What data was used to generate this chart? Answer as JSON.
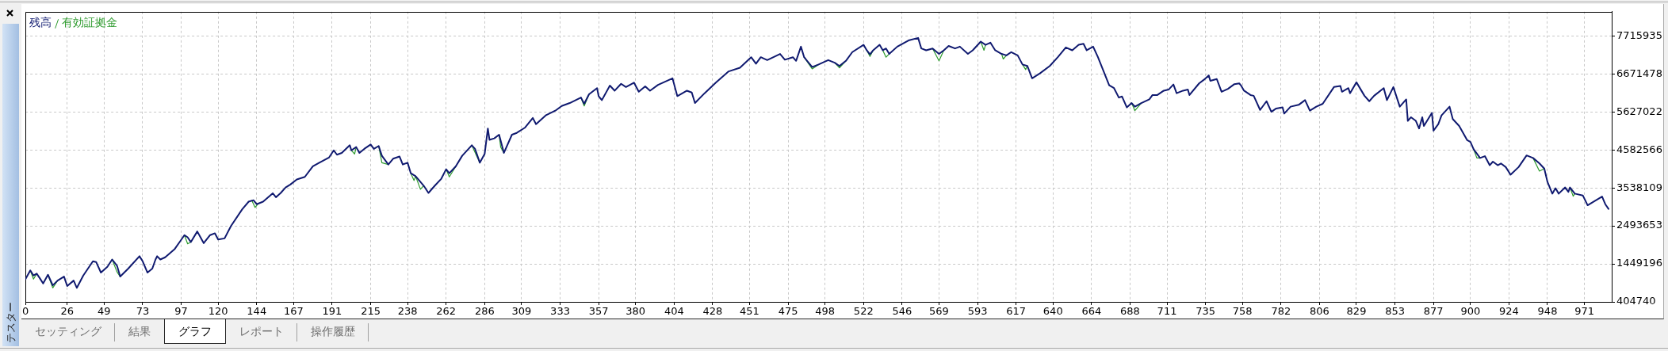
{
  "chart_data": {
    "type": "line",
    "legend": "top left",
    "grid": true,
    "xlim": [
      0,
      988
    ],
    "xticks": [
      0,
      26,
      49,
      73,
      97,
      120,
      144,
      167,
      191,
      215,
      238,
      262,
      286,
      309,
      333,
      357,
      380,
      404,
      428,
      451,
      475,
      498,
      522,
      546,
      569,
      593,
      617,
      640,
      664,
      688,
      711,
      735,
      758,
      782,
      806,
      829,
      853,
      877,
      900,
      924,
      948,
      971
    ],
    "ylim": [
      404740,
      8380000
    ],
    "yticks": [
      404740,
      1449196,
      2493653,
      3538109,
      4582566,
      5627022,
      6671478,
      7715935
    ],
    "annotations": [
      "テスター",
      "セッティング",
      "結果",
      "グラフ",
      "レポート",
      "操作履歴"
    ],
    "series": [
      {
        "name": "残高",
        "color": "#101a70",
        "x": [
          0,
          3,
          5,
          7,
          9,
          11,
          14,
          17,
          20,
          24,
          26,
          30,
          32,
          36,
          42,
          44,
          47,
          51,
          54,
          57,
          59,
          64,
          71,
          73,
          76,
          79,
          81,
          82,
          84,
          87,
          93,
          96,
          99,
          101,
          103,
          107,
          111,
          115,
          118,
          120,
          124,
          128,
          135,
          139,
          142,
          144,
          148,
          154,
          156,
          159,
          162,
          165,
          169,
          174,
          179,
          183,
          189,
          192,
          194,
          197,
          202,
          203,
          206,
          208,
          211,
          215,
          217,
          220,
          222,
          226,
          229,
          233,
          235,
          238,
          240,
          243,
          248,
          251,
          255,
          259,
          262,
          264,
          268,
          272,
          278,
          280,
          283,
          286,
          288,
          289,
          292,
          295,
          298,
          303,
          306,
          311,
          316,
          318,
          324,
          330,
          334,
          339,
          346,
          348,
          351,
          356,
          357,
          359,
          364,
          367,
          371,
          374,
          379,
          382,
          386,
          389,
          394,
          403,
          406,
          412,
          415,
          417,
          423,
          430,
          438,
          445,
          452,
          455,
          458,
          462,
          470,
          473,
          478,
          480,
          483,
          485,
          490,
          494,
          500,
          504,
          507,
          511,
          515,
          522,
          524,
          526,
          528,
          532,
          534,
          536,
          538,
          543,
          550,
          556,
          558,
          561,
          565,
          569,
          572,
          575,
          579,
          582,
          587,
          590,
          595,
          598,
          601,
          604,
          608,
          611,
          614,
          618,
          621,
          624,
          627,
          632,
          638,
          643,
          648,
          652,
          656,
          659,
          661,
          665,
          668,
          675,
          678,
          681,
          683,
          686,
          689,
          691,
          695,
          700,
          702,
          705,
          709,
          712,
          715,
          717,
          721,
          724,
          725,
          731,
          734,
          737,
          738,
          742,
          745,
          749,
          753,
          756,
          757,
          759,
          763,
          765,
          769,
          773,
          776,
          779,
          783,
          784,
          788,
          793,
          797,
          800,
          804,
          808,
          815,
          819,
          820,
          824,
          825,
          829,
          834,
          837,
          840,
          846,
          848,
          852,
          856,
          860,
          861,
          863,
          866,
          868,
          870,
          871,
          876,
          877,
          880,
          882,
          887,
          889,
          893,
          898,
          900,
          902,
          906,
          909,
          912,
          914,
          917,
          919,
          922,
          925,
          930,
          935,
          939,
          943,
          946,
          948,
          951,
          953,
          955,
          959,
          961,
          962,
          965,
          970,
          973,
          982,
          984,
          986
        ],
        "values": [
          1030000,
          1270000,
          1130000,
          1180000,
          1050000,
          910000,
          1150000,
          860000,
          990000,
          1100000,
          840000,
          990000,
          790000,
          1130000,
          1520000,
          1500000,
          1210000,
          1370000,
          1570000,
          1400000,
          1100000,
          1320000,
          1660000,
          1520000,
          1210000,
          1320000,
          1570000,
          1660000,
          1570000,
          1630000,
          1860000,
          2050000,
          2240000,
          2180000,
          2050000,
          2340000,
          2020000,
          2240000,
          2290000,
          2120000,
          2150000,
          2490000,
          2950000,
          3160000,
          3200000,
          3090000,
          3160000,
          3390000,
          3280000,
          3400000,
          3550000,
          3630000,
          3770000,
          3840000,
          4130000,
          4230000,
          4370000,
          4570000,
          4450000,
          4500000,
          4710000,
          4570000,
          4660000,
          4500000,
          4610000,
          4730000,
          4610000,
          4690000,
          4420000,
          4180000,
          4340000,
          4400000,
          4180000,
          4230000,
          3940000,
          3860000,
          3600000,
          3400000,
          3600000,
          3790000,
          4050000,
          3940000,
          4130000,
          4420000,
          4710000,
          4610000,
          4230000,
          4470000,
          5170000,
          4860000,
          4900000,
          5000000,
          4500000,
          5000000,
          5050000,
          5190000,
          5460000,
          5290000,
          5530000,
          5660000,
          5790000,
          5870000,
          6020000,
          5850000,
          6110000,
          6280000,
          6060000,
          5950000,
          6350000,
          6210000,
          6400000,
          6310000,
          6430000,
          6180000,
          6330000,
          6210000,
          6370000,
          6550000,
          6060000,
          6210000,
          6160000,
          5870000,
          6140000,
          6430000,
          6740000,
          6840000,
          7130000,
          6950000,
          7130000,
          7050000,
          7220000,
          7060000,
          7130000,
          7030000,
          7420000,
          7130000,
          6860000,
          6930000,
          7050000,
          6980000,
          6890000,
          7030000,
          7270000,
          7470000,
          7320000,
          7210000,
          7320000,
          7470000,
          7320000,
          7370000,
          7220000,
          7420000,
          7590000,
          7660000,
          7370000,
          7320000,
          7370000,
          7220000,
          7320000,
          7440000,
          7370000,
          7420000,
          7220000,
          7320000,
          7560000,
          7470000,
          7530000,
          7320000,
          7220000,
          7180000,
          7270000,
          7180000,
          6930000,
          6890000,
          6550000,
          6690000,
          6890000,
          7130000,
          7400000,
          7320000,
          7470000,
          7500000,
          7320000,
          7420000,
          7130000,
          6360000,
          6280000,
          6020000,
          6050000,
          5750000,
          5870000,
          5770000,
          5870000,
          5970000,
          6090000,
          6090000,
          6210000,
          6240000,
          6380000,
          6140000,
          6210000,
          6240000,
          6090000,
          6410000,
          6510000,
          6630000,
          6480000,
          6530000,
          6180000,
          6260000,
          6390000,
          6410000,
          6360000,
          6210000,
          6090000,
          6070000,
          5680000,
          5920000,
          5630000,
          5720000,
          5750000,
          5580000,
          5770000,
          5820000,
          5950000,
          5660000,
          5770000,
          5850000,
          6310000,
          6340000,
          6180000,
          6280000,
          6140000,
          6440000,
          6070000,
          5920000,
          6070000,
          6280000,
          5950000,
          6310000,
          5770000,
          5970000,
          5380000,
          5480000,
          5380000,
          5170000,
          5480000,
          5240000,
          5600000,
          5110000,
          5290000,
          5530000,
          5770000,
          5430000,
          5240000,
          4850000,
          4800000,
          4600000,
          4360000,
          4410000,
          4160000,
          4260000,
          4160000,
          4210000,
          4110000,
          3900000,
          4110000,
          4430000,
          4360000,
          4210000,
          4070000,
          3700000,
          3380000,
          3530000,
          3380000,
          3550000,
          3430000,
          3550000,
          3380000,
          3330000,
          3060000,
          3300000,
          3090000,
          2960000
        ]
      },
      {
        "name": "有効証拠金",
        "color": "#2e9b2e",
        "x": [
          3,
          5,
          7,
          10,
          14,
          17,
          20,
          22,
          54,
          57,
          59,
          80,
          99,
          101,
          103,
          122,
          141,
          143,
          145,
          170,
          203,
          205,
          206,
          213,
          220,
          222,
          226,
          231,
          240,
          242,
          243,
          246,
          248,
          255,
          262,
          264,
          268,
          275,
          278,
          281,
          283,
          290,
          295,
          296,
          298,
          320,
          346,
          348,
          351,
          420,
          485,
          490,
          494,
          502,
          504,
          507,
          511,
          518,
          524,
          526,
          528,
          530,
          534,
          536,
          538,
          550,
          565,
          569,
          572,
          585,
          595,
          597,
          598,
          603,
          608,
          609,
          611,
          615,
          621,
          623,
          624,
          650,
          689,
          691,
          695,
          800,
          902,
          904,
          906,
          920,
          939,
          943,
          946,
          955,
          962,
          964,
          965
        ],
        "values": [
          1270000,
          1030000,
          1180000,
          null,
          1150000,
          790000,
          990000,
          null,
          1570000,
          1230000,
          1100000,
          null,
          2240000,
          2000000,
          2050000,
          null,
          3190000,
          3000000,
          3110000,
          null,
          4570000,
          4470000,
          4660000,
          null,
          4690000,
          4230000,
          4180000,
          null,
          3940000,
          3740000,
          3860000,
          3500000,
          3600000,
          null,
          4050000,
          3840000,
          4130000,
          null,
          4710000,
          4420000,
          4230000,
          null,
          5000000,
          4660000,
          4500000,
          null,
          6020000,
          5790000,
          6110000,
          null,
          7130000,
          6810000,
          6930000,
          null,
          6980000,
          6840000,
          7030000,
          null,
          7320000,
          7150000,
          7320000,
          null,
          7320000,
          7130000,
          7220000,
          null,
          7370000,
          7030000,
          7320000,
          null,
          7560000,
          7320000,
          7470000,
          null,
          7220000,
          7080000,
          7180000,
          null,
          6930000,
          6790000,
          6890000,
          null,
          5870000,
          5660000,
          5870000,
          null,
          4600000,
          4360000,
          4360000,
          null,
          4360000,
          4000000,
          4070000,
          null,
          3550000,
          3310000,
          3380000
        ]
      }
    ]
  }
}
